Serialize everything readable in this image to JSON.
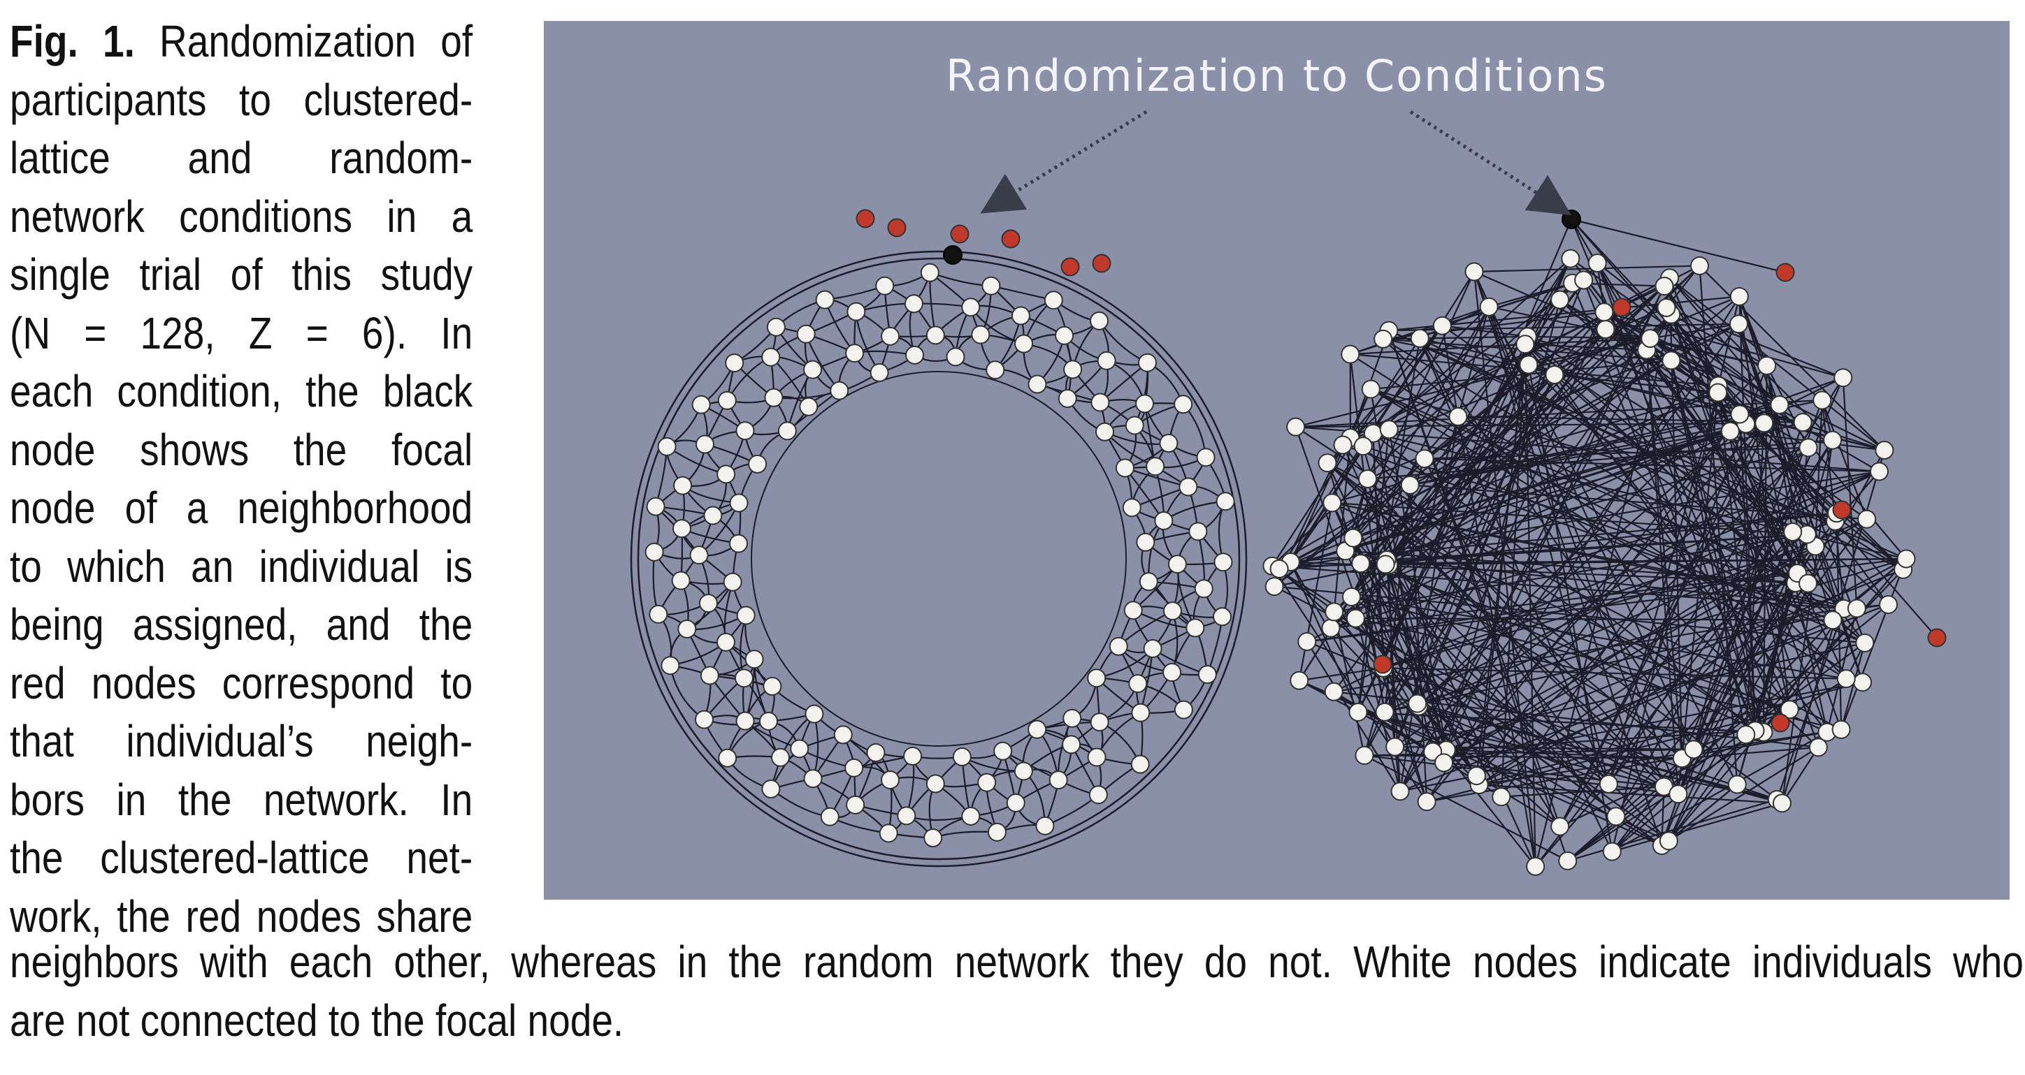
{
  "caption": {
    "figure_label": "Fig. 1.",
    "side_lines": [
      " Randomization of",
      "participants to clustered-",
      "lattice and random-",
      "network conditions in a",
      "single trial of this study",
      "(N = 128, Z = 6). In",
      "each condition, the black",
      "node shows the focal",
      "node of a neighborhood",
      "to which an individual is",
      "being assigned, and the",
      "red nodes correspond to",
      "that individual’s neigh-",
      "bors in the network. In",
      "the clustered-lattice net-",
      "work, the red nodes share"
    ],
    "bottom_lines": [
      "neighbors with each other, whereas in the random network they do not. White nodes indicate individuals who",
      "are not connected to the focal node."
    ]
  },
  "figure": {
    "title": "Randomization to Conditions",
    "colors": {
      "background": "#8a90a8",
      "focal_node": "#111111",
      "neighbor_node": "#c0392b",
      "other_node": "#f4f2ee",
      "edge": "#1c1c2a"
    }
  }
}
